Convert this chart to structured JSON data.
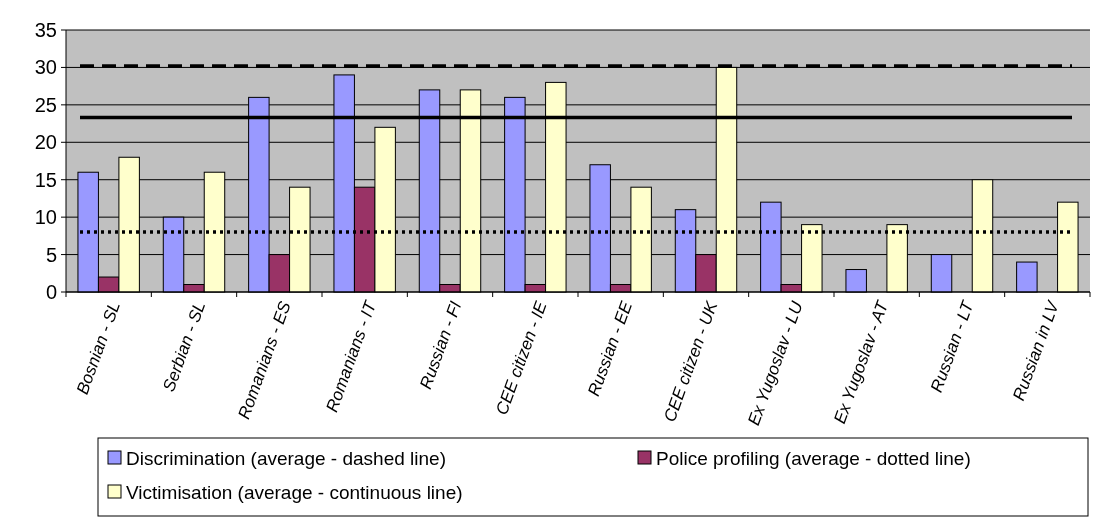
{
  "chart_data": {
    "type": "bar",
    "categories": [
      "Bosnian - SL",
      "Serbian - SL",
      "Romanians - ES",
      "Romanians - IT",
      "Russian - FI",
      "CEE citizen - IE",
      "Russian - EE",
      "CEE citizen - UK",
      "Ex Yugoslav - LU",
      "Ex Yugoslav - AT",
      "Russian - LT",
      "Russian in LV"
    ],
    "series": [
      {
        "name": "Discrimination (average - dashed line)",
        "color": "#9999ff",
        "values": [
          16,
          10,
          26,
          29,
          27,
          26,
          17,
          11,
          12,
          3,
          5,
          4
        ]
      },
      {
        "name": "Police profiling (average - dotted line)",
        "color": "#993366",
        "values": [
          2,
          1,
          5,
          14,
          1,
          1,
          1,
          5,
          1,
          null,
          null,
          null
        ]
      },
      {
        "name": "Victimisation (average - continuous line)",
        "color": "#ffffcc",
        "values": [
          18,
          16,
          14,
          22,
          27,
          28,
          14,
          30,
          9,
          9,
          15,
          12
        ]
      }
    ],
    "ylim": [
      0,
      35
    ],
    "yticks": [
      0,
      5,
      10,
      15,
      20,
      25,
      30,
      35
    ],
    "grid": "y",
    "legend": "bottom",
    "ref_lines": [
      {
        "axis": "y",
        "value": 30.2,
        "line_style": "dashed",
        "color": "#000000"
      },
      {
        "axis": "y",
        "value": 23.3,
        "line_style": "solid",
        "color": "#000000"
      },
      {
        "axis": "y",
        "value": 8,
        "line_style": "dotted",
        "color": "#000000"
      }
    ]
  }
}
